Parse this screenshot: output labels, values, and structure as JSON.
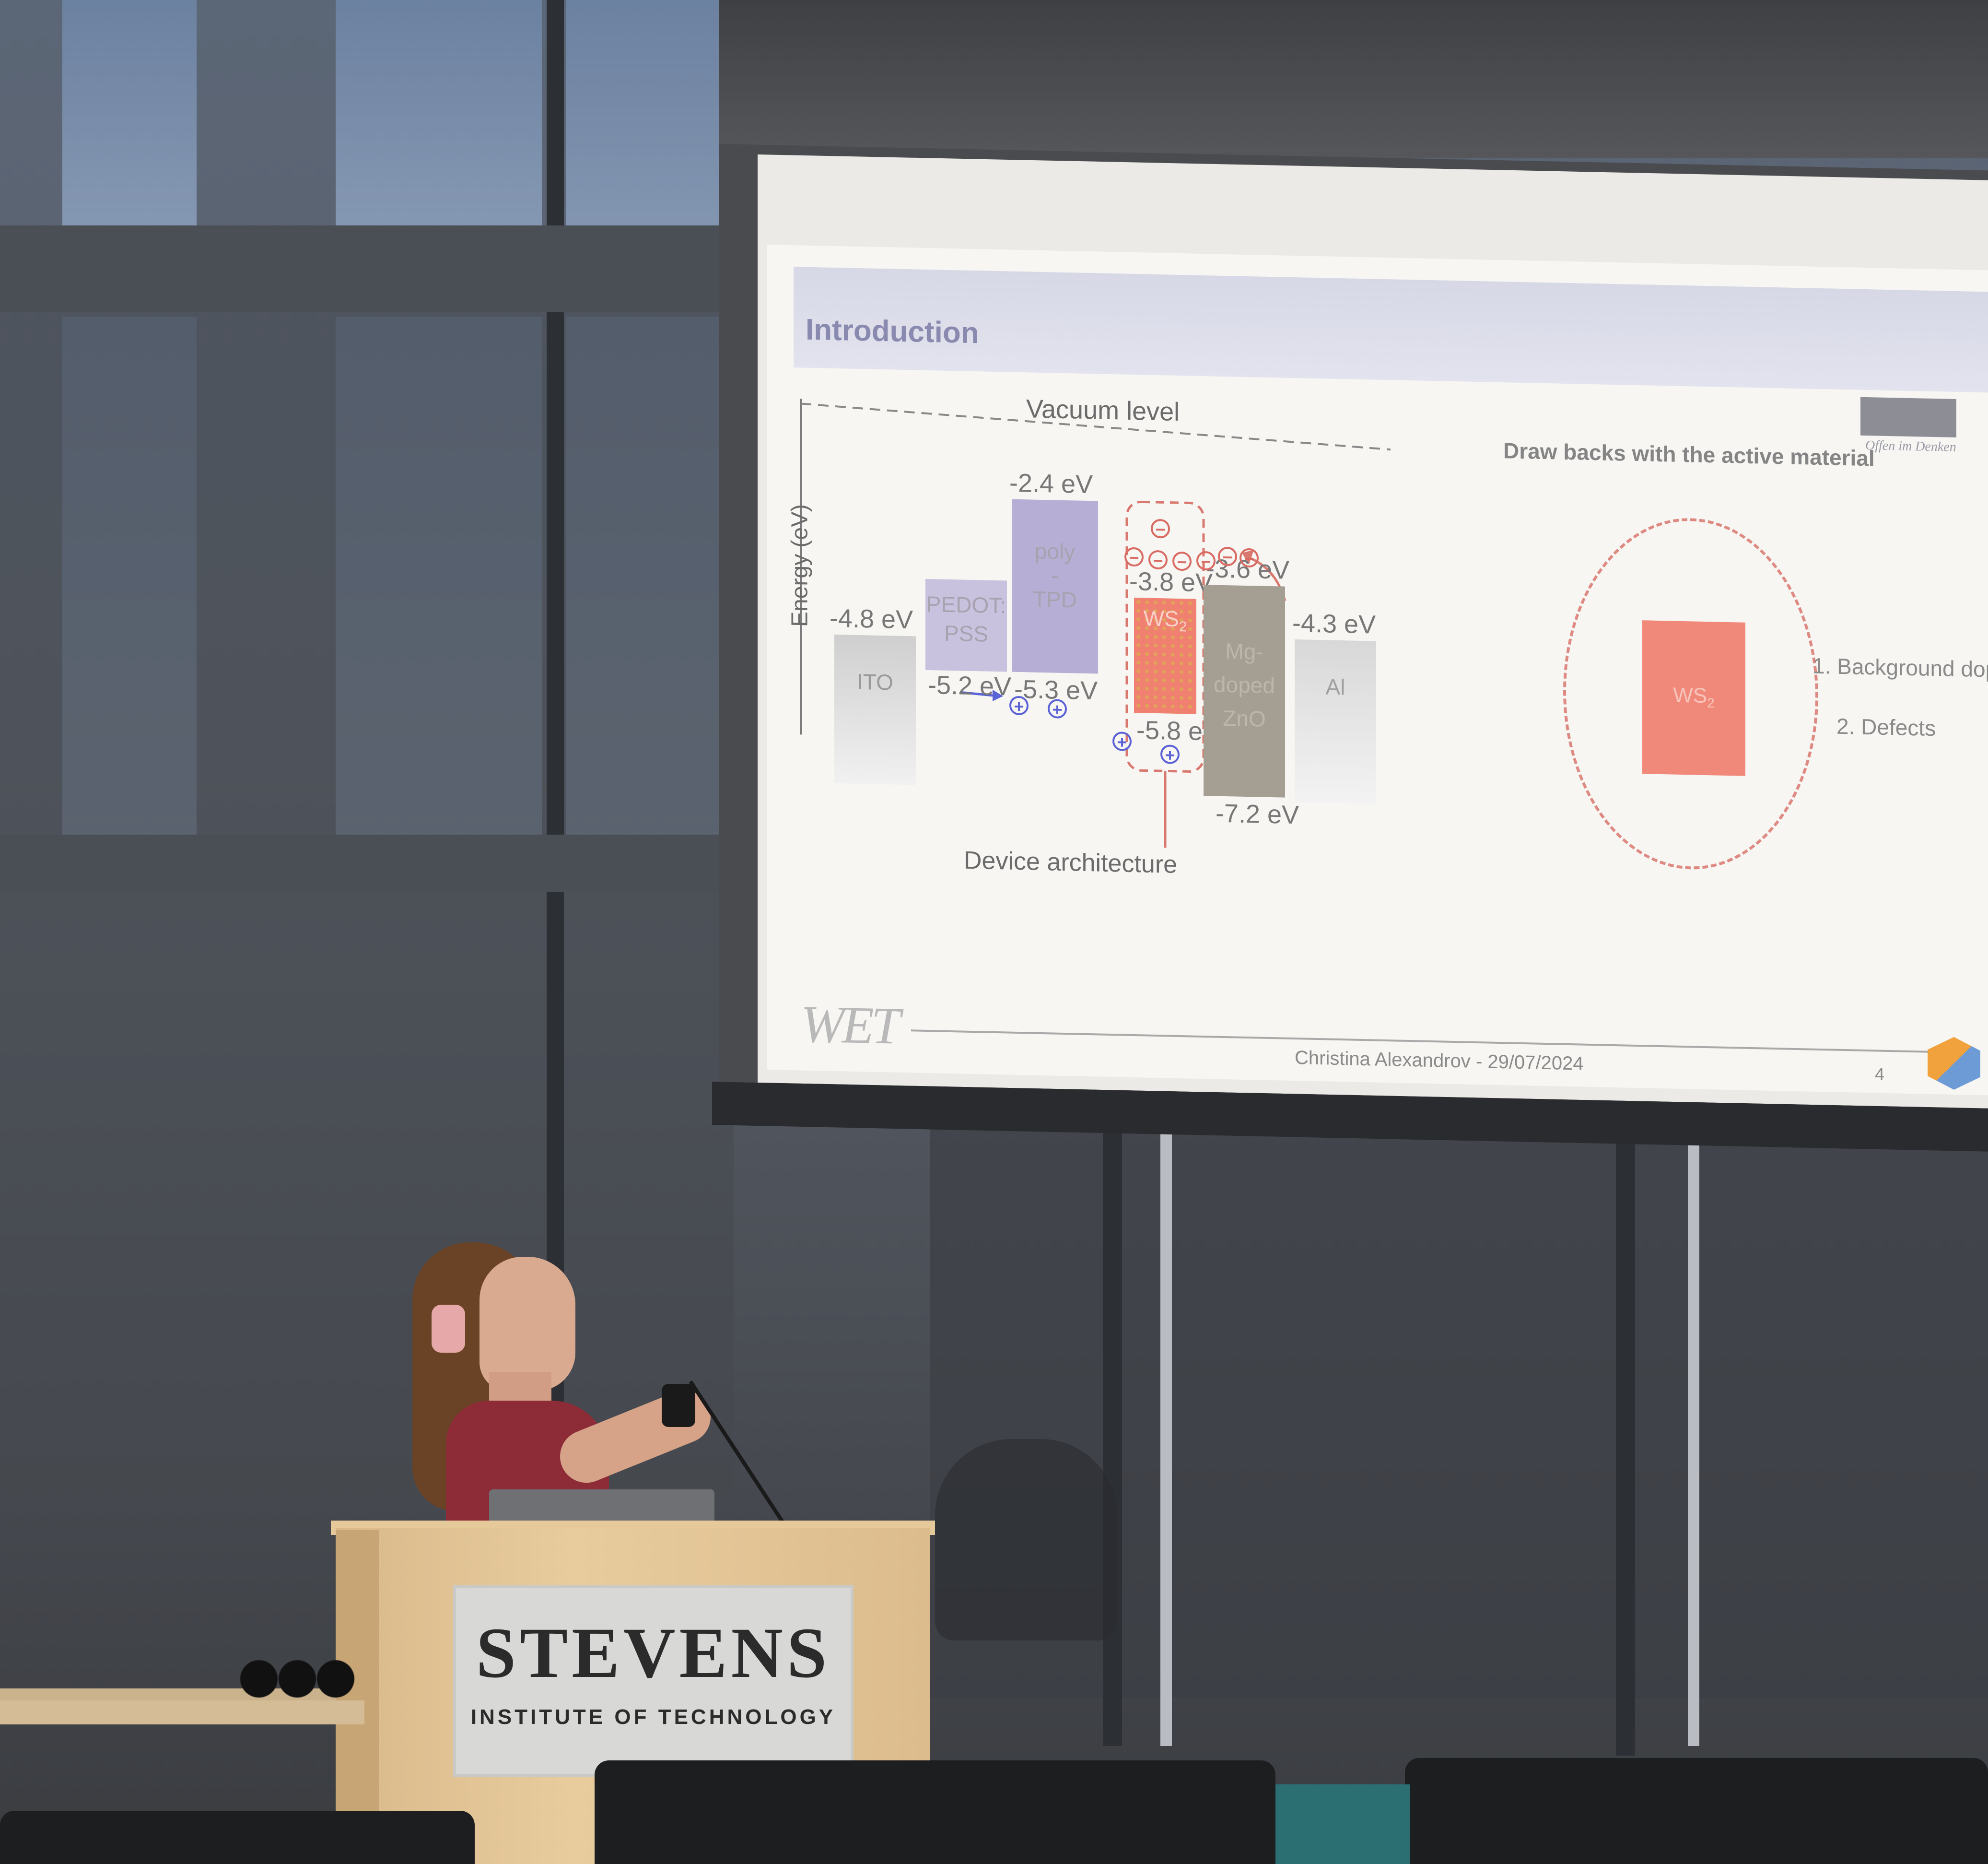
{
  "slide": {
    "title": "Introduction",
    "diagram": {
      "vacuum_label": "Vacuum level",
      "energy_axis_label": "Energy (eV)",
      "caption": "Device architecture",
      "layers": [
        {
          "name": "ITO",
          "top": "-4.8 eV"
        },
        {
          "name_line1": "PEDOT:",
          "name_line2": "PSS",
          "bottom": "-5.2 eV"
        },
        {
          "name_line1": "poly",
          "name_line2": "-",
          "name_line3": "TPD",
          "top": "-2.4 eV",
          "bottom": "-5.3 eV"
        },
        {
          "name": "WS",
          "name_sub": "2",
          "top": "-3.8 eV",
          "bottom": "-5.8 eV"
        },
        {
          "name_line1": "Mg-",
          "name_line2": "doped",
          "name_line3": "ZnO",
          "top": "-3.6 eV",
          "bottom": "-7.2 eV"
        },
        {
          "name": "Al",
          "top": "-4.3 eV"
        }
      ]
    },
    "right_panel": {
      "heading": "Draw backs with the active material",
      "box_label": "WS",
      "box_label_sub": "2",
      "points": [
        "1. Background dop",
        "2. Defects"
      ]
    },
    "logo_text": "Offen im Denken",
    "footer": {
      "brand": "WET",
      "author_date": "Christina Alexandrov - 29/07/2024",
      "page_number": "4"
    }
  },
  "podium": {
    "sign_main": "STEVENS",
    "sign_sub": "INSTITUTE OF TECHNOLOGY"
  },
  "colors": {
    "ws2": "#f08070",
    "polytpd": "#b6aed4",
    "pedot": "#c9c2de",
    "zno": "#a59e92",
    "ito": "#cfcfcf",
    "al": "#d8d8d8"
  }
}
